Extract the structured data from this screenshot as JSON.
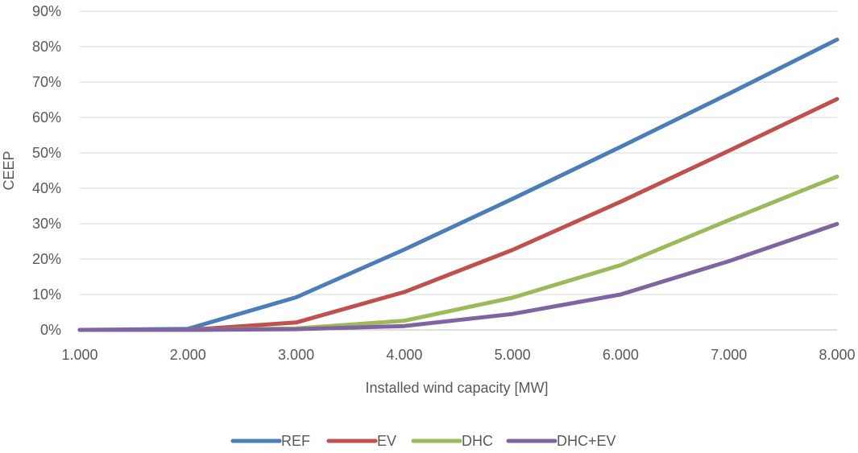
{
  "chart_data": {
    "type": "line",
    "title": "",
    "xlabel": "Installed wind capacity [MW]",
    "ylabel": "CEEP",
    "x": [
      1000,
      2000,
      3000,
      4000,
      5000,
      6000,
      7000,
      8000
    ],
    "x_tick_labels": [
      "1.000",
      "2.000",
      "3.000",
      "4.000",
      "5.000",
      "6.000",
      "7.000",
      "8.000"
    ],
    "y_tick_labels": [
      "0%",
      "10%",
      "20%",
      "30%",
      "40%",
      "50%",
      "60%",
      "70%",
      "80%",
      "90%"
    ],
    "ylim": [
      0,
      90
    ],
    "y_unit": "%",
    "grid": true,
    "legend_position": "bottom",
    "series": [
      {
        "name": "REF",
        "color": "#4a7ebb",
        "values": [
          0,
          0.3,
          9.2,
          22.7,
          37.0,
          51.7,
          66.7,
          82.0
        ]
      },
      {
        "name": "EV",
        "color": "#c0504d",
        "values": [
          0,
          0,
          2.1,
          10.7,
          22.6,
          36.2,
          50.6,
          65.2
        ]
      },
      {
        "name": "DHC",
        "color": "#9bbb59",
        "values": [
          0,
          0,
          0.4,
          2.6,
          9.1,
          18.3,
          31.0,
          43.3
        ]
      },
      {
        "name": "DHC+EV",
        "color": "#8064a2",
        "values": [
          0,
          0,
          0.2,
          1.1,
          4.5,
          10.0,
          19.4,
          29.9
        ]
      }
    ]
  }
}
